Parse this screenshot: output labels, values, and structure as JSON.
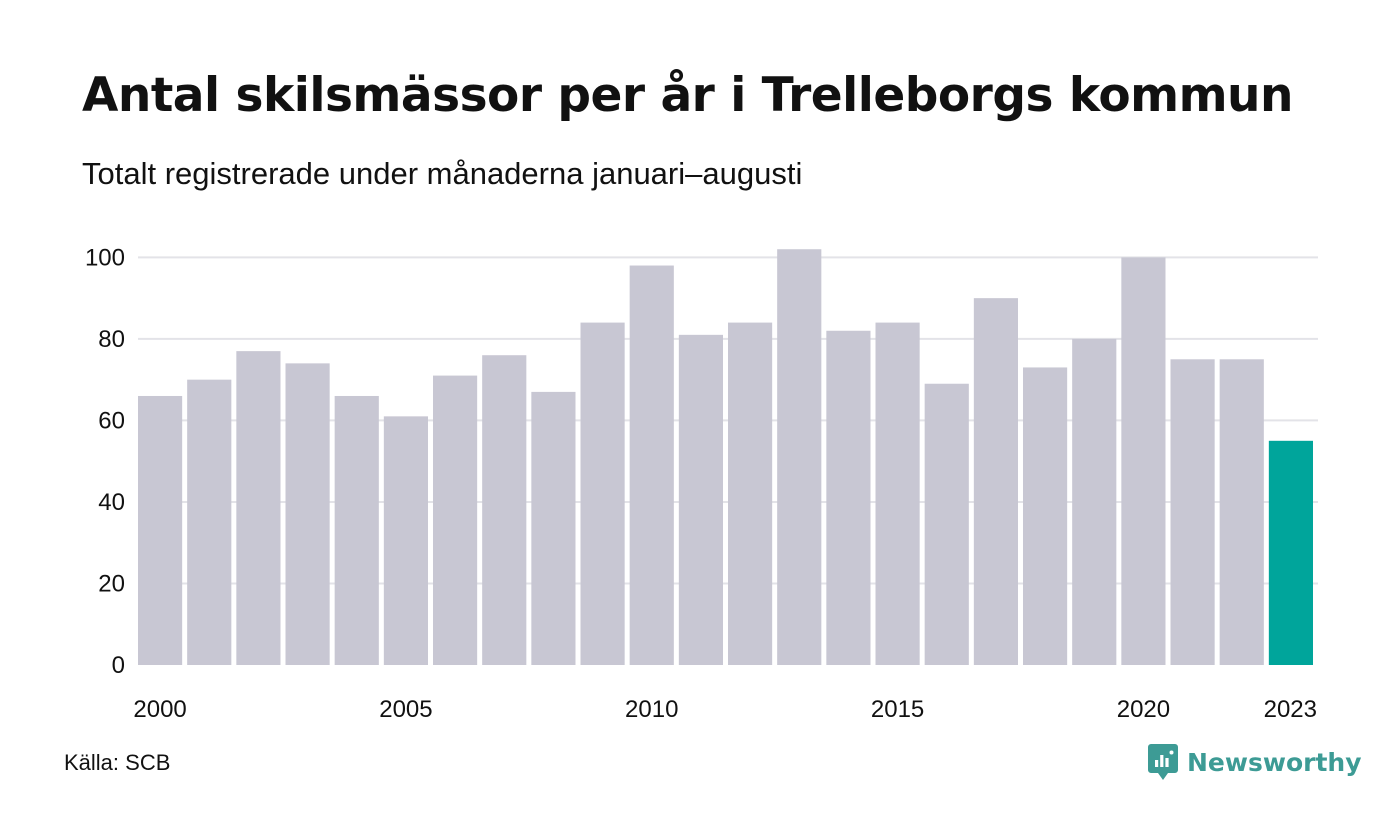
{
  "chart_data": {
    "type": "bar",
    "title": "Antal skilsmässor per år i Trelleborgs kommun",
    "subtitle": "Totalt registrerade under månaderna januari–augusti",
    "categories": [
      "2000",
      "2001",
      "2002",
      "2003",
      "2004",
      "2005",
      "2006",
      "2007",
      "2008",
      "2009",
      "2010",
      "2011",
      "2012",
      "2013",
      "2014",
      "2015",
      "2016",
      "2017",
      "2018",
      "2019",
      "2020",
      "2021",
      "2022",
      "2023"
    ],
    "values": [
      66,
      70,
      77,
      74,
      66,
      61,
      71,
      76,
      67,
      84,
      98,
      81,
      84,
      102,
      82,
      84,
      69,
      90,
      73,
      80,
      100,
      75,
      75,
      55
    ],
    "x_tick_labels": [
      "2000",
      "2005",
      "2010",
      "2015",
      "2020",
      "2023"
    ],
    "y_ticks": [
      0,
      20,
      40,
      60,
      80,
      100
    ],
    "ylim": [
      0,
      105
    ],
    "xlabel": "",
    "ylabel": "",
    "grid": true,
    "legend": "none",
    "colors": {
      "bar": "#c8c7d3",
      "highlight": "#00a59b",
      "grid": "#e3e3e8"
    },
    "highlight_category": "2023"
  },
  "source": "Källa: SCB",
  "brand": {
    "name": "Newsworthy",
    "icon": "bar-chart-badge-icon",
    "color": "#3d9b95"
  }
}
